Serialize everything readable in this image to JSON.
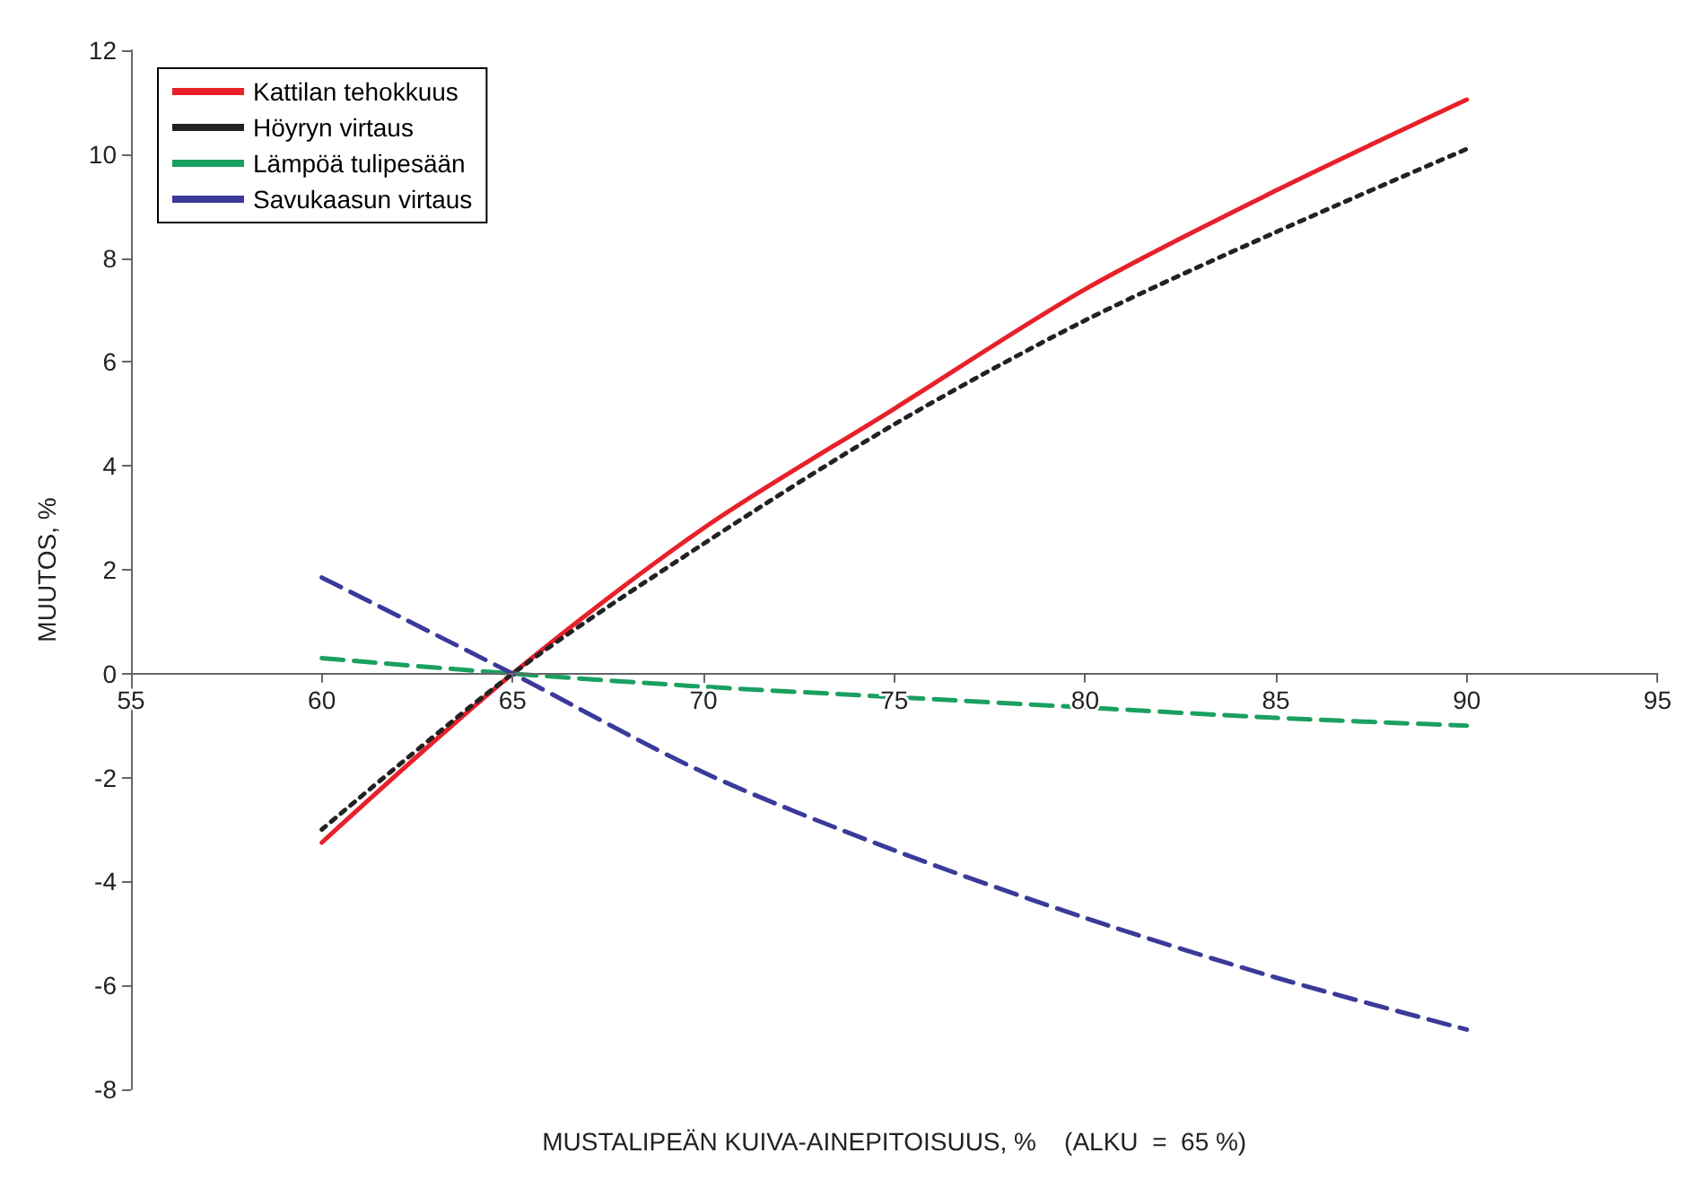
{
  "chart_data": {
    "type": "line",
    "xlabel": "MUSTALIPEÄN KUIVA-AINEPITOISUUS, %    (ALKU  =  65 %)",
    "ylabel": "MUUTOS, %",
    "x": [
      60,
      65,
      70,
      75,
      80,
      85,
      90
    ],
    "series": [
      {
        "name": "Kattilan tehokkuus",
        "color": "#e8202a",
        "line_style": "solid",
        "values": [
          -3.25,
          0,
          2.8,
          5.1,
          7.4,
          9.3,
          11.05
        ]
      },
      {
        "name": "Höyryn virtaus",
        "color": "#222222",
        "line_style": "dotted",
        "values": [
          -3.0,
          0,
          2.5,
          4.8,
          6.8,
          8.5,
          10.1
        ]
      },
      {
        "name": "Lämpöä tulipesään",
        "color": "#1aa060",
        "line_style": "dashed",
        "values": [
          0.3,
          0,
          -0.25,
          -0.45,
          -0.65,
          -0.85,
          -1.0
        ]
      },
      {
        "name": "Savukaasun virtaus",
        "color": "#3a3a9a",
        "line_style": "dashed",
        "values": [
          1.85,
          0,
          -1.9,
          -3.4,
          -4.7,
          -5.85,
          -6.85
        ]
      }
    ],
    "xlim": [
      55,
      95
    ],
    "xticks": [
      55,
      60,
      65,
      70,
      75,
      80,
      85,
      90,
      95
    ],
    "ylim": [
      -8,
      12
    ],
    "yticks": [
      -8,
      -6,
      -4,
      -2,
      0,
      2,
      4,
      6,
      8,
      10,
      12
    ],
    "grid": false,
    "legend": "top left",
    "marker": "none"
  }
}
